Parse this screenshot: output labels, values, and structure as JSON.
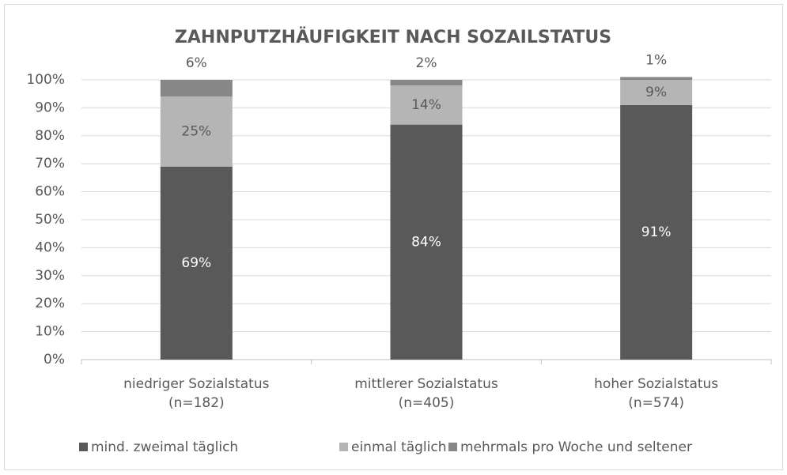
{
  "chart_data": {
    "type": "stacked_bar",
    "title": "ZAHNPUTZHÄUFIGKEIT NACH SOZAILSTATUS",
    "categories": [
      "niedriger Sozialstatus\n(n=182)",
      "mittlerer Sozialstatus\n(n=405)",
      "hoher Sozialstatus\n(n=574)"
    ],
    "series": [
      {
        "name": "mind. zweimal täglich",
        "color": "#595959",
        "values": [
          69,
          84,
          91
        ],
        "value_labels": [
          "69%",
          "84%",
          "91%"
        ]
      },
      {
        "name": "einmal täglich",
        "color": "#b5b5b5",
        "values": [
          25,
          14,
          9
        ],
        "value_labels": [
          "25%",
          "14%",
          "9%"
        ]
      },
      {
        "name": "mehrmals pro Woche und seltener",
        "color": "#878787",
        "values": [
          6,
          2,
          1
        ],
        "value_labels": [
          "6%",
          "2%",
          "1%"
        ]
      }
    ],
    "ylim": [
      0,
      100
    ],
    "yticks": [
      {
        "value": 0,
        "label": "0%"
      },
      {
        "value": 10,
        "label": "10%"
      },
      {
        "value": 20,
        "label": "20%"
      },
      {
        "value": 30,
        "label": "30%"
      },
      {
        "value": 40,
        "label": "40%"
      },
      {
        "value": 50,
        "label": "50%"
      },
      {
        "value": 60,
        "label": "60%"
      },
      {
        "value": 70,
        "label": "70%"
      },
      {
        "value": 80,
        "label": "80%"
      },
      {
        "value": 90,
        "label": "90%"
      },
      {
        "value": 100,
        "label": "100%"
      }
    ],
    "grid": true,
    "legend": "bottom"
  }
}
